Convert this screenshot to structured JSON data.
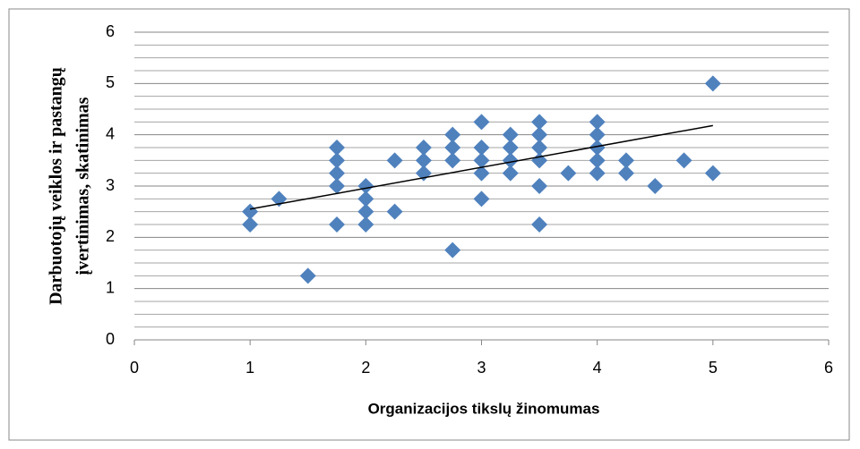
{
  "chart_data": {
    "type": "scatter",
    "x_label": "Organizacijos tikslų žinomumas",
    "y_label": [
      "Darbuotojų veiklos ir pastangų",
      "įvertinimas, skatinimas"
    ],
    "x": [
      1,
      1,
      1.25,
      1.5,
      1.75,
      1.75,
      1.75,
      1.75,
      1.75,
      2,
      2,
      2,
      2,
      2.25,
      2.25,
      2.5,
      2.5,
      2.5,
      2.75,
      2.75,
      2.75,
      2.75,
      3,
      3,
      3,
      3,
      3,
      3.25,
      3.25,
      3.25,
      3.25,
      3.5,
      3.5,
      3.5,
      3.5,
      3.5,
      3.5,
      3.75,
      4,
      4,
      4,
      4,
      4,
      4.25,
      4.25,
      4.5,
      4.75,
      5,
      5
    ],
    "y": [
      2.5,
      2.25,
      2.75,
      1.25,
      3.75,
      3.5,
      3.25,
      3,
      2.25,
      3,
      2.75,
      2.5,
      2.25,
      3.5,
      2.5,
      3.75,
      3.5,
      3.25,
      4,
      3.75,
      3.5,
      1.75,
      4.25,
      3.75,
      3.5,
      3.25,
      2.75,
      4,
      3.75,
      3.5,
      3.25,
      4.25,
      4,
      3.75,
      3.5,
      3,
      2.25,
      3.25,
      4.25,
      4,
      3.75,
      3.5,
      3.25,
      3.5,
      3.25,
      3,
      3.5,
      5,
      3.25
    ],
    "color": "#4f81bd",
    "trendline": {
      "x": [
        1,
        5
      ],
      "y": [
        2.55,
        4.18
      ],
      "color": "#000000"
    },
    "xlim": [
      0,
      6
    ],
    "xticks": [
      0,
      1,
      2,
      3,
      4,
      5,
      6
    ],
    "ylim": [
      0,
      6
    ],
    "yticks": [
      0,
      1,
      2,
      3,
      4,
      5,
      6
    ],
    "minor_yticks": [
      0.25,
      0.5,
      0.75,
      1.25,
      1.5,
      1.75,
      2.25,
      2.5,
      2.75,
      3.25,
      3.5,
      3.75,
      4.25,
      4.5,
      4.75,
      5.25,
      5.5,
      5.75
    ],
    "grid": true
  }
}
